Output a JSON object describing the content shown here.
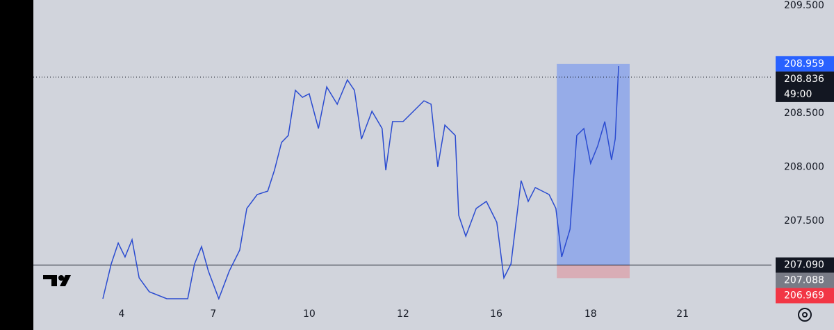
{
  "chart_data": {
    "type": "line",
    "color": "#2a4bd0",
    "x": [
      2.26,
      2.53,
      2.76,
      2.98,
      3.21,
      3.44,
      3.77,
      4.34,
      5.02,
      5.24,
      5.47,
      5.69,
      6.03,
      6.37,
      6.71,
      6.94,
      7.28,
      7.62,
      7.84,
      8.07,
      8.29,
      8.52,
      8.75,
      8.97,
      9.27,
      9.54,
      9.88,
      10.21,
      10.44,
      10.67,
      11.01,
      11.34,
      11.46,
      11.68,
      12.02,
      12.36,
      12.7,
      12.93,
      13.15,
      13.38,
      13.72,
      13.83,
      14.06,
      14.4,
      14.73,
      15.07,
      15.3,
      15.53,
      15.86,
      16.09,
      16.32,
      16.77,
      16.99,
      17.18,
      17.45,
      17.67,
      17.9,
      18.12,
      18.35,
      18.58,
      18.8,
      18.92,
      19.03
    ],
    "values": [
      206.777,
      207.1,
      207.294,
      207.165,
      207.326,
      206.971,
      206.842,
      206.777,
      206.777,
      207.1,
      207.261,
      207.035,
      206.777,
      207.035,
      207.229,
      207.616,
      207.745,
      207.777,
      207.971,
      208.229,
      208.294,
      208.713,
      208.648,
      208.681,
      208.358,
      208.745,
      208.584,
      208.81,
      208.713,
      208.261,
      208.519,
      208.358,
      207.971,
      208.423,
      208.423,
      208.519,
      208.616,
      208.584,
      208.003,
      208.39,
      208.294,
      207.552,
      207.358,
      207.616,
      207.681,
      207.487,
      206.971,
      207.1,
      207.874,
      207.681,
      207.81,
      207.745,
      207.616,
      207.165,
      207.423,
      208.294,
      208.358,
      208.035,
      208.197,
      208.423,
      208.068,
      208.261,
      208.939
    ],
    "xlim": [
      0,
      24
    ],
    "ylim": [
      206.745,
      209.552
    ],
    "xticks": [
      {
        "value": 2.87,
        "label": "4"
      },
      {
        "value": 5.85,
        "label": "7"
      },
      {
        "value": 8.97,
        "label": "10"
      },
      {
        "value": 12.02,
        "label": "12"
      },
      {
        "value": 15.05,
        "label": "16"
      },
      {
        "value": 18.12,
        "label": "18"
      },
      {
        "value": 21.11,
        "label": "21"
      }
    ],
    "yticks": [
      {
        "value": 207.5,
        "label": "207.500"
      },
      {
        "value": 208,
        "label": "208.000"
      },
      {
        "value": 208.5,
        "label": "208.500"
      },
      {
        "value": 209.5,
        "label": "209.500"
      }
    ],
    "price_labels": [
      {
        "value": 208.959,
        "label": "208.959",
        "color": "#2962ff"
      },
      {
        "value": 208.836,
        "label": "208.836",
        "color": "#131722"
      },
      {
        "value": 207.09,
        "label": "207.090",
        "color": "#131722"
      },
      {
        "value": 207.088,
        "label": "207.088",
        "color": "#787b86"
      },
      {
        "value": 206.969,
        "label": "206.969",
        "color": "#f23645"
      }
    ],
    "countdown": "49:00",
    "position_x": [
      17.02,
      19.39
    ]
  }
}
